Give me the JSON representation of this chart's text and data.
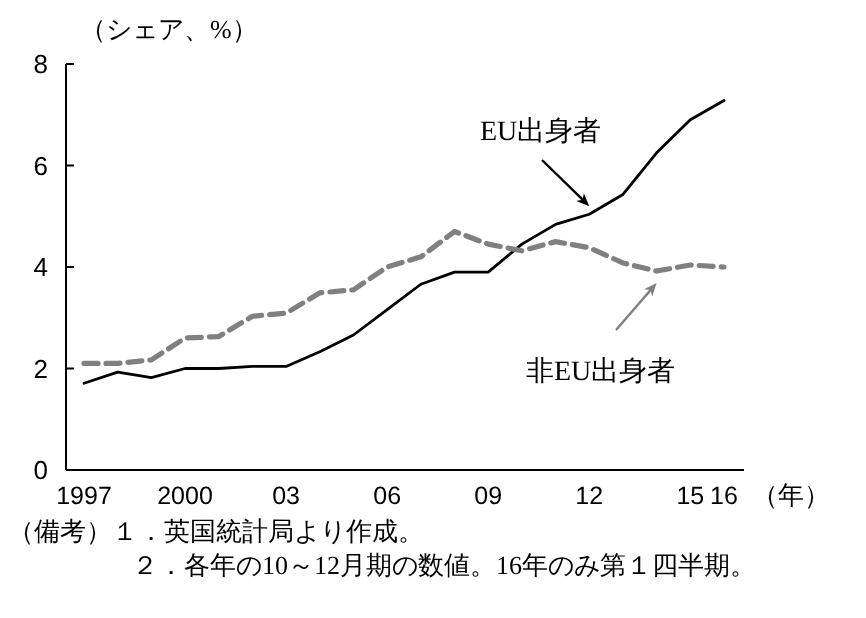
{
  "chart_data": {
    "type": "line",
    "ylabel": "（シェア、%）",
    "xlabel": "（年）",
    "categories": [
      "1997",
      null,
      null,
      "2000",
      null,
      null,
      "03",
      null,
      null,
      "06",
      null,
      null,
      "09",
      null,
      null,
      "12",
      null,
      null,
      "15",
      "16"
    ],
    "series": [
      {
        "name": "EU出身者",
        "color": "#000000",
        "line_style": "solid",
        "values": [
          1.71,
          1.93,
          1.82,
          2.0,
          2.0,
          2.04,
          2.04,
          2.33,
          2.66,
          3.16,
          3.66,
          3.9,
          3.9,
          4.45,
          4.84,
          5.04,
          5.43,
          6.25,
          6.9,
          7.28
        ]
      },
      {
        "name": "非EU出身者",
        "color": "#808080",
        "line_style": "dashed",
        "values": [
          2.1,
          2.1,
          2.17,
          2.6,
          2.63,
          3.03,
          3.09,
          3.49,
          3.55,
          4.0,
          4.2,
          4.7,
          4.45,
          4.32,
          4.5,
          4.38,
          4.08,
          3.92,
          4.04,
          4.0
        ]
      }
    ],
    "ylim": [
      0,
      8
    ],
    "yticks": [
      0,
      2,
      4,
      6,
      8
    ],
    "grid": false,
    "marker": "none",
    "annotations": [
      "（備考）１．英国統計局より作成。",
      "２．各年の10～12月期の数値。16年のみ第１四半期。"
    ]
  }
}
